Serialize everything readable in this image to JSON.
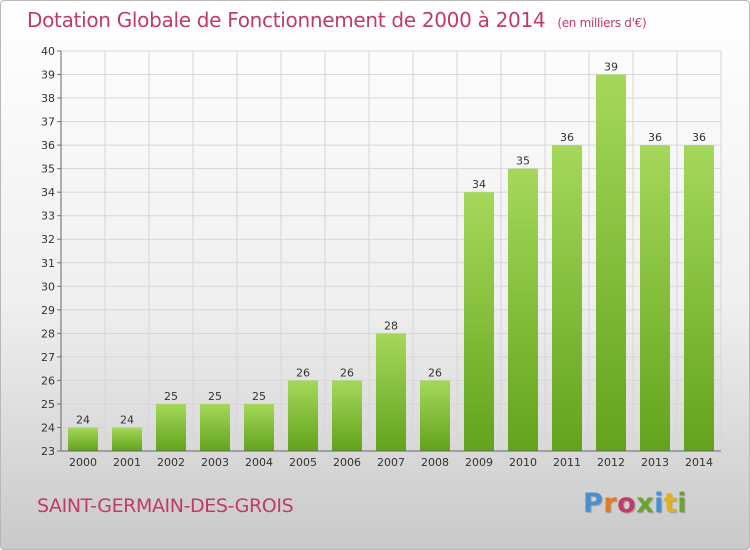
{
  "title": "Dotation Globale de Fonctionnement de 2000 à 2014",
  "subtitle": "(en milliers d'€)",
  "commune": "SAINT-GERMAIN-DES-GROIS",
  "logo": {
    "text": "Proxiti",
    "colors": [
      "#4a8fd0",
      "#e8791c",
      "#c03a6a",
      "#6aa52a",
      "#4a8fd0",
      "#e0b21c",
      "#6aa52a"
    ]
  },
  "colors": {
    "title": "#c03a6a",
    "bar_light": "#a5d85a",
    "bar_dark": "#63a31c",
    "grid": "#d6d6d6"
  },
  "chart_data": {
    "type": "bar",
    "categories": [
      "2000",
      "2001",
      "2002",
      "2003",
      "2004",
      "2005",
      "2006",
      "2007",
      "2008",
      "2009",
      "2010",
      "2011",
      "2012",
      "2013",
      "2014"
    ],
    "values": [
      24,
      24,
      25,
      25,
      25,
      26,
      26,
      28,
      26,
      34,
      35,
      36,
      39,
      36,
      36
    ],
    "ylim": [
      23,
      40
    ],
    "yticks": [
      23,
      24,
      25,
      26,
      27,
      28,
      29,
      30,
      31,
      32,
      33,
      34,
      35,
      36,
      37,
      38,
      39,
      40
    ],
    "grid": true
  }
}
